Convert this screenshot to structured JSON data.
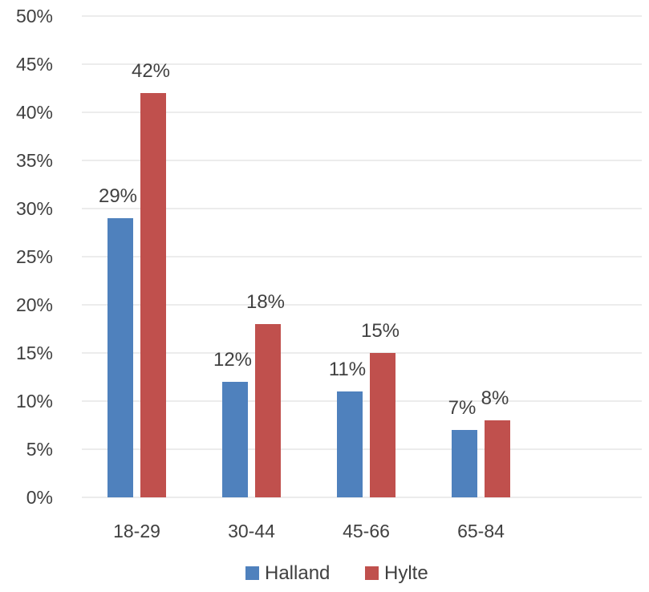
{
  "chart_data": {
    "type": "bar",
    "title": "",
    "xlabel": "",
    "ylabel": "",
    "categories": [
      "18-29",
      "30-44",
      "45-66",
      "65-84"
    ],
    "series": [
      {
        "name": "Halland",
        "color": "#4f81bd",
        "values": [
          29,
          12,
          11,
          7
        ],
        "labels": [
          "29%",
          "12%",
          "11%",
          "7%"
        ]
      },
      {
        "name": "Hylte",
        "color": "#c0504d",
        "values": [
          42,
          18,
          15,
          8
        ],
        "labels": [
          "42%",
          "18%",
          "15%",
          "8%"
        ]
      }
    ],
    "ylim": [
      0,
      50
    ],
    "ytick_labels": [
      "0%",
      "5%",
      "10%",
      "15%",
      "20%",
      "25%",
      "30%",
      "35%",
      "40%",
      "45%",
      "50%"
    ],
    "grid": true,
    "legend_position": "bottom"
  }
}
